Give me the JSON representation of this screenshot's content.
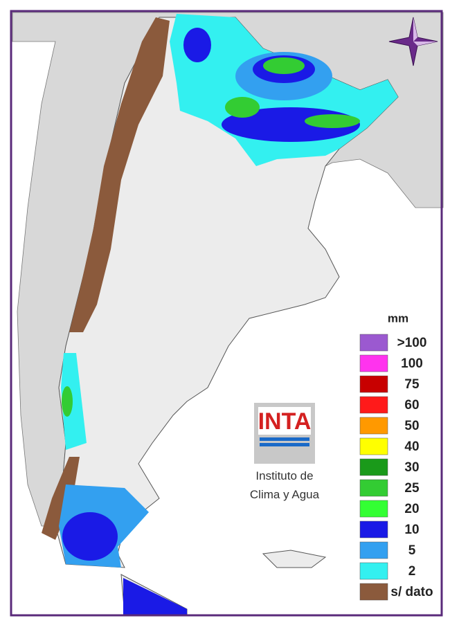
{
  "legend": {
    "title": "mm",
    "items": [
      {
        "label": ">100",
        "color": "#9b59d0"
      },
      {
        "label": "100",
        "color": "#ff33ee"
      },
      {
        "label": "75",
        "color": "#c80000"
      },
      {
        "label": "60",
        "color": "#ff1a1a"
      },
      {
        "label": "50",
        "color": "#ff9900"
      },
      {
        "label": "40",
        "color": "#ffff00"
      },
      {
        "label": "30",
        "color": "#1a9a1a"
      },
      {
        "label": "25",
        "color": "#33cc33"
      },
      {
        "label": "20",
        "color": "#33ff33"
      },
      {
        "label": "10",
        "color": "#1a1ae6"
      },
      {
        "label": "5",
        "color": "#33a0f0"
      },
      {
        "label": "2",
        "color": "#33f0f0"
      },
      {
        "label": "s/ dato",
        "color": "#8b5a3c"
      }
    ]
  },
  "logo": {
    "text": "INTA",
    "caption": [
      "Instituto de",
      "Clima y Agua"
    ]
  }
}
